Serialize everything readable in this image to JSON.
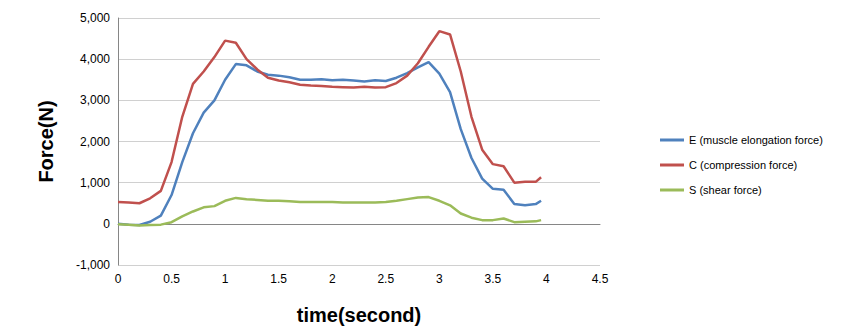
{
  "chart_data": {
    "type": "line",
    "x_label": "time(second)",
    "y_label": "Force(N)",
    "x": [
      0,
      0.1,
      0.2,
      0.3,
      0.4,
      0.5,
      0.6,
      0.7,
      0.8,
      0.9,
      1.0,
      1.1,
      1.2,
      1.3,
      1.4,
      1.5,
      1.6,
      1.7,
      1.8,
      1.9,
      2.0,
      2.1,
      2.2,
      2.3,
      2.4,
      2.5,
      2.6,
      2.7,
      2.8,
      2.9,
      3.0,
      3.1,
      3.2,
      3.3,
      3.4,
      3.5,
      3.6,
      3.7,
      3.8,
      3.9,
      3.95
    ],
    "series": [
      {
        "name": "E (muscle elongation force)",
        "color": "#4f81bd",
        "values": [
          0,
          -20,
          -30,
          50,
          200,
          700,
          1500,
          2200,
          2700,
          3000,
          3500,
          3880,
          3850,
          3700,
          3620,
          3600,
          3560,
          3500,
          3500,
          3510,
          3490,
          3500,
          3480,
          3460,
          3490,
          3470,
          3550,
          3660,
          3800,
          3930,
          3650,
          3200,
          2300,
          1600,
          1100,
          850,
          830,
          480,
          450,
          480,
          560
        ]
      },
      {
        "name": "C (compression force)",
        "color": "#c0504d",
        "values": [
          530,
          520,
          500,
          620,
          800,
          1500,
          2600,
          3400,
          3700,
          4050,
          4450,
          4400,
          4000,
          3750,
          3550,
          3480,
          3440,
          3380,
          3360,
          3350,
          3330,
          3320,
          3310,
          3330,
          3310,
          3320,
          3420,
          3600,
          3900,
          4300,
          4680,
          4600,
          3700,
          2600,
          1800,
          1450,
          1400,
          1000,
          1020,
          1020,
          1130
        ]
      },
      {
        "name": "S (shear force)",
        "color": "#9bbb59",
        "values": [
          -10,
          -20,
          -40,
          -30,
          -20,
          40,
          180,
          300,
          400,
          430,
          560,
          630,
          600,
          580,
          560,
          560,
          550,
          530,
          530,
          530,
          530,
          520,
          520,
          520,
          520,
          530,
          560,
          600,
          640,
          650,
          560,
          450,
          250,
          150,
          90,
          90,
          130,
          40,
          50,
          60,
          90
        ]
      }
    ],
    "xlim": [
      0,
      4.5
    ],
    "xticks": [
      0,
      0.5,
      1,
      1.5,
      2,
      2.5,
      3,
      3.5,
      4,
      4.5
    ],
    "ylim": [
      -1000,
      5000
    ],
    "yticks": [
      -1000,
      0,
      1000,
      2000,
      3000,
      4000,
      5000
    ],
    "grid": true,
    "legend": "right"
  }
}
